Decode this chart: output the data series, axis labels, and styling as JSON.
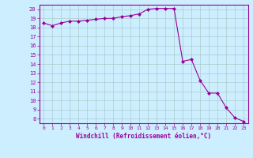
{
  "x": [
    0,
    1,
    2,
    3,
    4,
    5,
    6,
    7,
    8,
    9,
    10,
    11,
    12,
    13,
    14,
    15,
    16,
    17,
    18,
    19,
    20,
    21,
    22,
    23
  ],
  "y": [
    18.5,
    18.2,
    18.5,
    18.7,
    18.7,
    18.8,
    18.9,
    19.0,
    19.0,
    19.2,
    19.3,
    19.5,
    20.0,
    20.1,
    20.1,
    20.1,
    14.3,
    14.5,
    12.2,
    10.8,
    10.8,
    9.2,
    8.1,
    7.7
  ],
  "line_color": "#990099",
  "marker": "D",
  "marker_size": 2,
  "bg_color": "#cceeff",
  "grid_color": "#aacccc",
  "xlabel": "Windchill (Refroidissement éolien,°C)",
  "ylabel_ticks": [
    8,
    9,
    10,
    11,
    12,
    13,
    14,
    15,
    16,
    17,
    18,
    19,
    20
  ],
  "xlim": [
    -0.5,
    23.5
  ],
  "ylim": [
    7.5,
    20.5
  ],
  "xticks": [
    0,
    1,
    2,
    3,
    4,
    5,
    6,
    7,
    8,
    9,
    10,
    11,
    12,
    13,
    14,
    15,
    16,
    17,
    18,
    19,
    20,
    21,
    22,
    23
  ]
}
